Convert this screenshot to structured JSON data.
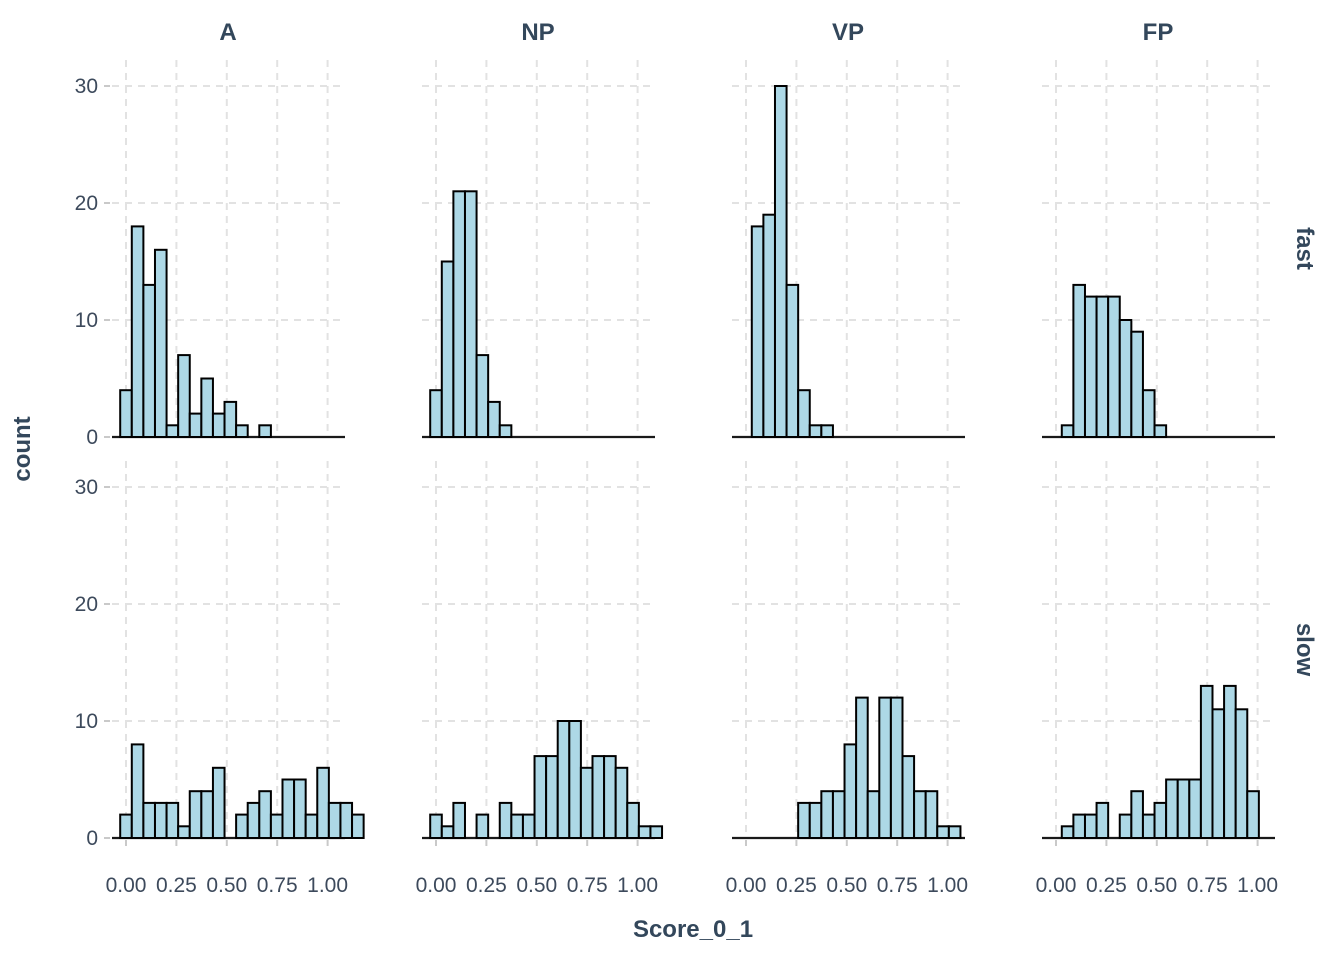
{
  "chart_data": {
    "type": "bar",
    "subtype": "faceted-histogram",
    "title": "",
    "xlabel": "Score_0_1",
    "ylabel": "count",
    "facet_columns": [
      "A",
      "NP",
      "VP",
      "FP"
    ],
    "facet_rows": [
      "fast",
      "slow"
    ],
    "x_ticks": [
      0.0,
      0.25,
      0.5,
      0.75,
      1.0
    ],
    "x_tick_labels": [
      "0.00",
      "0.25",
      "0.50",
      "0.75",
      "1.00"
    ],
    "y_ticks": [
      0,
      10,
      20,
      30
    ],
    "y_tick_labels": [
      "0",
      "10",
      "20",
      "30"
    ],
    "ylim": [
      0,
      32.2
    ],
    "xlim": [
      -0.07,
      1.09
    ],
    "bin_width": 0.0575,
    "first_bin_center": 0.0,
    "grid": "dashed-major",
    "legend": "none",
    "panels": [
      {
        "row": "fast",
        "col": "A",
        "counts": [
          4,
          18,
          13,
          16,
          1,
          7,
          2,
          5,
          2,
          3,
          1,
          0,
          1
        ]
      },
      {
        "row": "fast",
        "col": "NP",
        "counts": [
          4,
          15,
          21,
          21,
          7,
          3,
          1
        ]
      },
      {
        "row": "fast",
        "col": "VP",
        "counts": [
          0,
          18,
          19,
          30,
          13,
          4,
          1,
          1
        ]
      },
      {
        "row": "fast",
        "col": "FP",
        "counts": [
          0,
          1,
          13,
          12,
          12,
          12,
          10,
          9,
          4,
          1
        ]
      },
      {
        "row": "slow",
        "col": "A",
        "counts": [
          2,
          8,
          3,
          3,
          3,
          1,
          4,
          4,
          6,
          0,
          2,
          3,
          4,
          2,
          5,
          5,
          2,
          6,
          3,
          3,
          2
        ]
      },
      {
        "row": "slow",
        "col": "NP",
        "counts": [
          2,
          1,
          3,
          0,
          2,
          0,
          3,
          2,
          2,
          7,
          7,
          10,
          10,
          6,
          7,
          7,
          6,
          3,
          1,
          1
        ]
      },
      {
        "row": "slow",
        "col": "VP",
        "counts": [
          0,
          0,
          0,
          0,
          0,
          3,
          3,
          4,
          4,
          8,
          12,
          4,
          12,
          12,
          7,
          4,
          4,
          1,
          1
        ]
      },
      {
        "row": "slow",
        "col": "FP",
        "counts": [
          0,
          1,
          2,
          2,
          3,
          0,
          2,
          4,
          2,
          3,
          5,
          5,
          5,
          13,
          11,
          13,
          11,
          4
        ]
      }
    ],
    "colors": {
      "bar_fill": "#ADD8E6",
      "bar_stroke": "#000000",
      "gridline": "#E2E2E2",
      "axis_line": "#1A1A1A",
      "title_text": "#33475B",
      "tick_text": "#3D4A5C",
      "tick_mark": "#C9C9C9",
      "background": "#FFFFFF"
    }
  }
}
